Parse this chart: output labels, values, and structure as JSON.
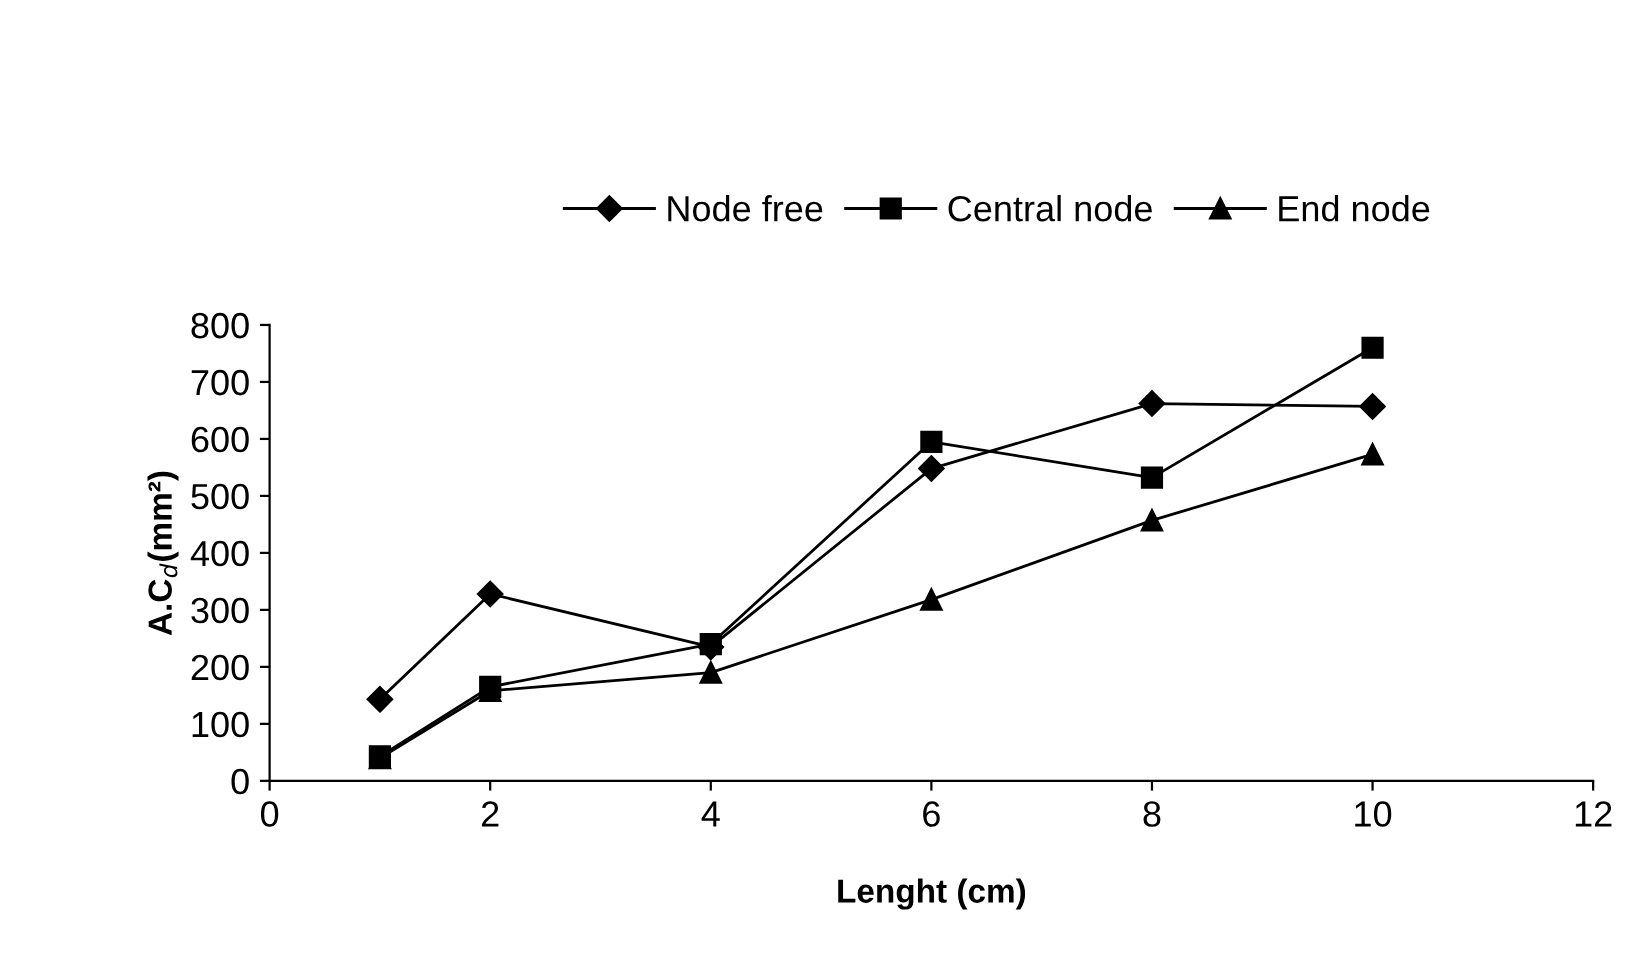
{
  "chart_data": {
    "type": "line",
    "xlabel": "Lenght (cm)",
    "ylabel": "A.C$_{d}$(mm²)",
    "xlim": [
      0,
      12
    ],
    "xticks": [
      0,
      2,
      4,
      6,
      8,
      10,
      12
    ],
    "ylim": [
      0,
      800
    ],
    "yticks": [
      0,
      100,
      200,
      300,
      400,
      500,
      600,
      700,
      800
    ],
    "grid": false,
    "legend": "top",
    "series": [
      {
        "name": "Node free",
        "color": "#000000",
        "marker": "diamond",
        "x": [
          1,
          2,
          4,
          6,
          8,
          10
        ],
        "values": [
          143,
          328,
          235,
          548,
          662,
          657
        ]
      },
      {
        "name": "Central node",
        "color": "#000000",
        "marker": "square",
        "x": [
          1,
          2,
          4,
          6,
          8,
          10
        ],
        "values": [
          43,
          165,
          240,
          595,
          532,
          760
        ]
      },
      {
        "name": "End node",
        "color": "#000000",
        "marker": "triangle",
        "x": [
          1,
          2,
          4,
          6,
          8,
          10
        ],
        "values": [
          40,
          158,
          190,
          318,
          457,
          573
        ]
      }
    ]
  }
}
